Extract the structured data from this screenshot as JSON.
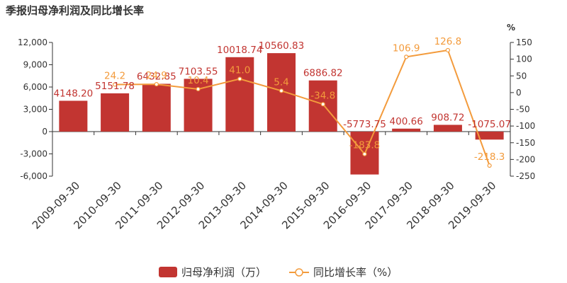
{
  "chart_data": {
    "type": "bar",
    "title": "季报归母净利润及同比增长率",
    "categories": [
      "2009-09-30",
      "2010-09-30",
      "2011-09-30",
      "2012-09-30",
      "2013-09-30",
      "2014-09-30",
      "2015-09-30",
      "2016-09-30",
      "2017-09-30",
      "2018-09-30",
      "2019-09-30"
    ],
    "series": [
      {
        "name": "归母净利润（万）",
        "type": "bar",
        "axis": "left",
        "color": "#c23531",
        "values": [
          4148.2,
          5151.78,
          6432.85,
          7103.55,
          10018.74,
          10560.83,
          6886.82,
          -5773.75,
          400.66,
          908.72,
          -1075.07
        ],
        "labels": [
          "4148.20",
          "5151.78",
          "6432.85",
          "7103.55",
          "10018.74",
          "10560.83",
          "6886.82",
          "-5773.75",
          "400.66",
          "908.72",
          "-1075.07"
        ]
      },
      {
        "name": "同比增长率（%）",
        "type": "line",
        "axis": "right",
        "color": "#f39b3c",
        "values": [
          null,
          24.2,
          24.9,
          10.4,
          41.0,
          5.4,
          -34.8,
          -183.8,
          106.9,
          126.8,
          -218.3
        ],
        "labels": [
          "",
          "24.2",
          "24.9",
          "10.4",
          "41.0",
          "5.4",
          "-34.8",
          "-183.8",
          "106.9",
          "126.8",
          "-218.3"
        ]
      }
    ],
    "y_left": {
      "min": -6000,
      "max": 12000,
      "ticks": [
        -6000,
        -3000,
        0,
        3000,
        6000,
        9000,
        12000
      ],
      "tick_labels": [
        "-6,000",
        "-3,000",
        "0",
        "3,000",
        "6,000",
        "9,000",
        "12,000"
      ]
    },
    "y_right": {
      "unit": "%",
      "min": -250,
      "max": 150,
      "ticks": [
        -250,
        -200,
        -150,
        -100,
        -50,
        0,
        50,
        100,
        150
      ],
      "tick_labels": [
        "-250",
        "-200",
        "-150",
        "-100",
        "-50",
        "0",
        "50",
        "100",
        "150"
      ]
    },
    "grid": false,
    "legend": "bottom-center"
  }
}
